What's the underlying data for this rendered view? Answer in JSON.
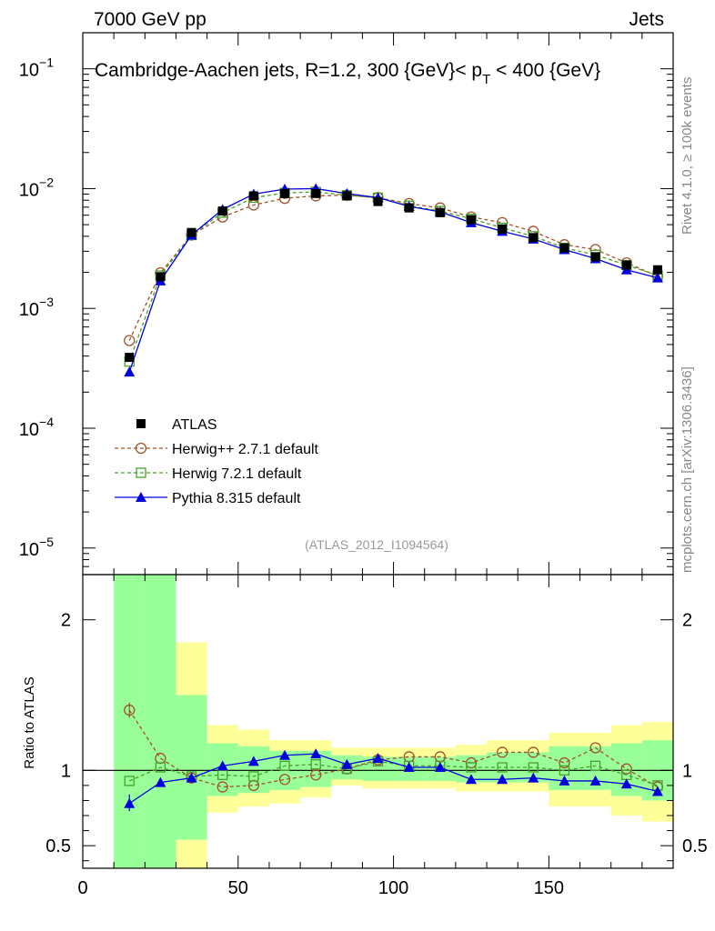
{
  "header": {
    "left": "7000 GeV pp",
    "right": "Jets"
  },
  "side_labels": {
    "rivet": "Rivet 4.1.0, ≥ 100k events",
    "mcplots": "mcplots.cern.ch [arXiv:1306.3436]"
  },
  "chart_data": [
    {
      "type": "line",
      "title": "Cambridge-Aachen jets, R=1.2, 300 {GeV}< p_T < 400 {GeV}",
      "title_main": "Cambridge-Aachen jets, R=1.2, 300 {GeV}< p",
      "title_sub": "T",
      "title_end": " < 400 {GeV}",
      "watermark": "(ATLAS_2012_I1094564)",
      "yscale": "log",
      "xlim": [
        0,
        190
      ],
      "ylim": [
        6e-06,
        0.2
      ],
      "ytick_labels": [
        {
          "v": 0.1,
          "base": "10",
          "exp": "−1"
        },
        {
          "v": 0.01,
          "base": "10",
          "exp": "−2"
        },
        {
          "v": 0.001,
          "base": "10",
          "exp": "−3"
        },
        {
          "v": 0.0001,
          "base": "10",
          "exp": "−4"
        },
        {
          "v": 1e-05,
          "base": "10",
          "exp": "−5"
        }
      ],
      "x": [
        15,
        25,
        35,
        45,
        55,
        65,
        75,
        85,
        95,
        105,
        115,
        125,
        135,
        145,
        155,
        165,
        175,
        185
      ],
      "legend_position": "lower-left",
      "series": [
        {
          "name": "ATLAS",
          "color": "#000000",
          "marker": "filled-square",
          "values": [
            0.00039,
            0.00184,
            0.0043,
            0.0065,
            0.0087,
            0.0091,
            0.0091,
            0.0087,
            0.0078,
            0.0069,
            0.0063,
            0.0055,
            0.0046,
            0.0039,
            0.0032,
            0.0027,
            0.0023,
            0.0021
          ]
        },
        {
          "name": "Herwig++ 2.7.1 default",
          "color": "#a0522d",
          "marker": "open-circle",
          "dashed": true,
          "values": [
            0.00054,
            0.00198,
            0.0041,
            0.0058,
            0.0073,
            0.0083,
            0.0087,
            0.0088,
            0.0084,
            0.0075,
            0.0069,
            0.0058,
            0.0052,
            0.0044,
            0.0034,
            0.0031,
            0.0024,
            0.00186
          ]
        },
        {
          "name": "Herwig 7.2.1 default",
          "color": "#4aa02c",
          "marker": "open-square",
          "dashed": true,
          "values": [
            0.00036,
            0.00188,
            0.0041,
            0.0063,
            0.0084,
            0.0092,
            0.0094,
            0.0088,
            0.0084,
            0.0072,
            0.0065,
            0.0056,
            0.0047,
            0.004,
            0.0032,
            0.0028,
            0.0023,
            0.00189
          ]
        },
        {
          "name": "Pythia 8.315 default",
          "color": "#0000dd",
          "marker": "filled-triangle",
          "values": [
            0.000295,
            0.0017,
            0.0041,
            0.0067,
            0.009,
            0.0099,
            0.01,
            0.0091,
            0.0084,
            0.0071,
            0.0064,
            0.0052,
            0.0044,
            0.0038,
            0.0031,
            0.0026,
            0.0021,
            0.0018
          ]
        }
      ]
    },
    {
      "type": "line",
      "ylabel": "Ratio to ATLAS",
      "xlim": [
        0,
        190
      ],
      "ylim": [
        0.35,
        2.3
      ],
      "xtick_labels": [
        "0",
        "50",
        "100",
        "150"
      ],
      "xtick_values": [
        0,
        50,
        100,
        150
      ],
      "ytick_labels": [
        "0.5",
        "1",
        "2"
      ],
      "ytick_values": [
        0.5,
        1,
        2
      ],
      "x": [
        15,
        25,
        35,
        45,
        55,
        65,
        75,
        85,
        95,
        105,
        115,
        125,
        135,
        145,
        155,
        165,
        175,
        185
      ],
      "bands": {
        "x_edges": [
          10,
          20,
          30,
          40,
          50,
          60,
          70,
          80,
          90,
          100,
          110,
          120,
          130,
          140,
          150,
          160,
          170,
          180,
          190
        ],
        "yellow_lo": [
          0.35,
          0.35,
          0.35,
          0.72,
          0.76,
          0.78,
          0.82,
          0.9,
          0.88,
          0.88,
          0.88,
          0.86,
          0.86,
          0.86,
          0.76,
          0.76,
          0.7,
          0.66
        ],
        "yellow_hi": [
          2.3,
          2.3,
          1.85,
          1.3,
          1.27,
          1.2,
          1.2,
          1.15,
          1.15,
          1.15,
          1.15,
          1.17,
          1.2,
          1.2,
          1.25,
          1.25,
          1.3,
          1.32
        ],
        "green_lo": [
          0.35,
          0.35,
          0.54,
          0.83,
          0.85,
          0.87,
          0.89,
          0.94,
          0.93,
          0.93,
          0.93,
          0.92,
          0.92,
          0.92,
          0.87,
          0.87,
          0.83,
          0.8
        ],
        "green_hi": [
          2.3,
          2.3,
          1.5,
          1.18,
          1.16,
          1.13,
          1.13,
          1.1,
          1.09,
          1.09,
          1.09,
          1.1,
          1.12,
          1.12,
          1.16,
          1.16,
          1.18,
          1.2
        ]
      },
      "series": [
        {
          "name": "Herwig++ 2.7.1 default",
          "color": "#a0522d",
          "marker": "open-circle",
          "dashed": true,
          "values": [
            1.4,
            1.08,
            0.95,
            0.89,
            0.9,
            0.94,
            0.97,
            1.01,
            1.07,
            1.09,
            1.09,
            1.05,
            1.12,
            1.12,
            1.05,
            1.15,
            1.01,
            0.89
          ]
        },
        {
          "name": "Herwig 7.2.1 default",
          "color": "#4aa02c",
          "marker": "open-square",
          "dashed": true,
          "values": [
            0.93,
            1.02,
            0.96,
            0.97,
            0.96,
            1.03,
            1.04,
            1.01,
            1.06,
            1.03,
            1.03,
            1.02,
            1.02,
            1.02,
            1.0,
            1.03,
            0.97,
            0.9
          ]
        },
        {
          "name": "Pythia 8.315 default",
          "color": "#0000dd",
          "marker": "filled-triangle",
          "values": [
            0.78,
            0.92,
            0.95,
            1.03,
            1.06,
            1.1,
            1.11,
            1.04,
            1.08,
            1.02,
            1.02,
            0.94,
            0.94,
            0.95,
            0.93,
            0.93,
            0.91,
            0.86
          ]
        }
      ]
    }
  ]
}
